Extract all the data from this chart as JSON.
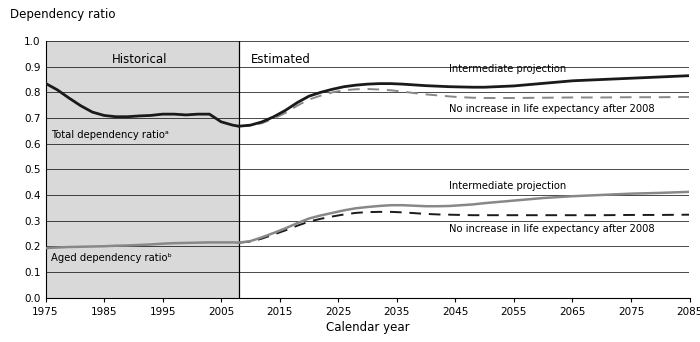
{
  "title_ylabel": "Dependency ratio",
  "xlabel": "Calendar year",
  "historical_label": "Historical",
  "estimated_label": "Estimated",
  "divider_year": 2008,
  "xlim": [
    1975,
    2085
  ],
  "ylim": [
    0.0,
    1.0
  ],
  "yticks": [
    0.0,
    0.1,
    0.2,
    0.3,
    0.4,
    0.5,
    0.6,
    0.7,
    0.8,
    0.9,
    1.0
  ],
  "xticks": [
    1975,
    1985,
    1995,
    2005,
    2015,
    2025,
    2035,
    2045,
    2055,
    2065,
    2075,
    2085
  ],
  "background_historical": "#d9d9d9",
  "total_label": "Total dependency ratioᵃ",
  "aged_label": "Aged dependency ratioᵇ",
  "total_intermediate_label": "Intermediate projection",
  "total_no_increase_label": "No increase in life expectancy after 2008",
  "aged_intermediate_label": "Intermediate projection",
  "aged_no_increase_label": "No increase in life expectancy after 2008",
  "total_historical_x": [
    1975,
    1977,
    1979,
    1981,
    1983,
    1985,
    1987,
    1989,
    1991,
    1993,
    1995,
    1997,
    1999,
    2001,
    2003,
    2005,
    2007,
    2008
  ],
  "total_historical_y": [
    0.835,
    0.81,
    0.778,
    0.748,
    0.723,
    0.71,
    0.705,
    0.705,
    0.708,
    0.71,
    0.715,
    0.715,
    0.712,
    0.715,
    0.715,
    0.685,
    0.672,
    0.668
  ],
  "total_intermediate_x": [
    2008,
    2010,
    2012,
    2014,
    2016,
    2018,
    2020,
    2022,
    2024,
    2026,
    2028,
    2030,
    2032,
    2034,
    2036,
    2038,
    2040,
    2042,
    2044,
    2046,
    2048,
    2050,
    2055,
    2060,
    2065,
    2070,
    2075,
    2080,
    2085
  ],
  "total_intermediate_y": [
    0.668,
    0.672,
    0.685,
    0.705,
    0.73,
    0.76,
    0.785,
    0.8,
    0.812,
    0.822,
    0.828,
    0.832,
    0.834,
    0.834,
    0.832,
    0.829,
    0.826,
    0.824,
    0.822,
    0.821,
    0.82,
    0.82,
    0.825,
    0.835,
    0.845,
    0.85,
    0.855,
    0.86,
    0.865
  ],
  "total_noincrease_x": [
    2008,
    2010,
    2012,
    2014,
    2016,
    2018,
    2020,
    2022,
    2024,
    2026,
    2028,
    2030,
    2032,
    2034,
    2036,
    2038,
    2040,
    2042,
    2044,
    2046,
    2048,
    2050,
    2055,
    2060,
    2065,
    2070,
    2075,
    2080,
    2085
  ],
  "total_noincrease_y": [
    0.668,
    0.67,
    0.68,
    0.698,
    0.72,
    0.748,
    0.772,
    0.787,
    0.8,
    0.808,
    0.812,
    0.813,
    0.811,
    0.808,
    0.803,
    0.797,
    0.792,
    0.788,
    0.784,
    0.781,
    0.779,
    0.778,
    0.778,
    0.779,
    0.78,
    0.78,
    0.781,
    0.781,
    0.782
  ],
  "aged_historical_x": [
    1975,
    1977,
    1979,
    1981,
    1983,
    1985,
    1987,
    1989,
    1991,
    1993,
    1995,
    1997,
    1999,
    2001,
    2003,
    2005,
    2007,
    2008
  ],
  "aged_historical_y": [
    0.193,
    0.195,
    0.197,
    0.198,
    0.199,
    0.2,
    0.202,
    0.203,
    0.205,
    0.207,
    0.21,
    0.212,
    0.213,
    0.214,
    0.215,
    0.215,
    0.215,
    0.214
  ],
  "aged_intermediate_x": [
    2008,
    2010,
    2012,
    2014,
    2016,
    2018,
    2020,
    2022,
    2024,
    2026,
    2028,
    2030,
    2032,
    2034,
    2036,
    2038,
    2040,
    2042,
    2044,
    2046,
    2048,
    2050,
    2055,
    2060,
    2065,
    2070,
    2075,
    2080,
    2085
  ],
  "aged_intermediate_y": [
    0.214,
    0.22,
    0.235,
    0.252,
    0.27,
    0.29,
    0.308,
    0.32,
    0.33,
    0.34,
    0.348,
    0.353,
    0.357,
    0.36,
    0.36,
    0.358,
    0.356,
    0.356,
    0.357,
    0.36,
    0.363,
    0.368,
    0.378,
    0.388,
    0.395,
    0.4,
    0.405,
    0.408,
    0.412
  ],
  "aged_noincrease_x": [
    2008,
    2010,
    2012,
    2014,
    2016,
    2018,
    2020,
    2022,
    2024,
    2026,
    2028,
    2030,
    2032,
    2034,
    2036,
    2038,
    2040,
    2042,
    2044,
    2046,
    2048,
    2050,
    2055,
    2060,
    2065,
    2070,
    2075,
    2080,
    2085
  ],
  "aged_noincrease_y": [
    0.214,
    0.218,
    0.23,
    0.246,
    0.262,
    0.28,
    0.296,
    0.307,
    0.316,
    0.324,
    0.33,
    0.333,
    0.334,
    0.334,
    0.332,
    0.329,
    0.326,
    0.324,
    0.323,
    0.322,
    0.321,
    0.321,
    0.321,
    0.321,
    0.321,
    0.321,
    0.322,
    0.322,
    0.323
  ],
  "color_black": "#1a1a1a",
  "color_gray": "#888888",
  "label_fontsize": 7.5,
  "annotation_fontsize": 7.2,
  "title_fontsize": 8.5
}
